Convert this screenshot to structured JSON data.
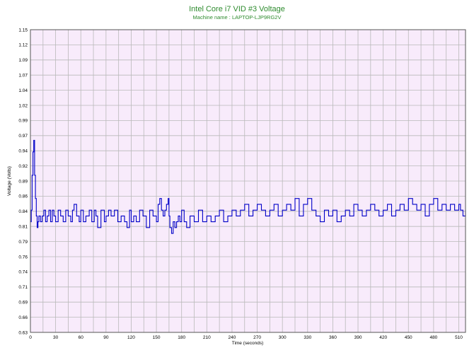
{
  "chart_data": {
    "type": "line",
    "title": "Intel Core i7 VID #3 Voltage",
    "subtitle": "Machine name : LAPTOP-LJP9RG2V",
    "xlabel": "Time (seconds)",
    "ylabel": "Voltage (Volts)",
    "xlim": [
      0,
      518
    ],
    "ylim": [
      0.63,
      1.15
    ],
    "x_ticks": [
      "0",
      "30",
      "60",
      "90",
      "120",
      "150",
      "180",
      "210",
      "240",
      "270",
      "300",
      "330",
      "360",
      "390",
      "420",
      "450",
      "480",
      "510"
    ],
    "y_ticks": [
      "1.15",
      "1.12",
      "1.09",
      "1.07",
      "1.04",
      "1.02",
      "0.99",
      "0.97",
      "0.94",
      "0.92",
      "0.89",
      "0.86",
      "0.84",
      "0.81",
      "0.79",
      "0.76",
      "0.74",
      "0.71",
      "0.69",
      "0.66",
      "0.63"
    ],
    "grid": true,
    "colors": {
      "plot_background": "#f8ebfb",
      "grid": "#b9b9b9",
      "line": "#0000c8",
      "title": "#2e8b2e"
    },
    "series": [
      {
        "x": [
          0,
          1,
          2,
          3,
          4,
          5,
          6,
          7,
          8,
          9,
          10,
          12,
          14,
          16,
          18,
          20,
          22,
          24,
          26,
          28,
          30,
          33,
          36,
          39,
          42,
          45,
          48,
          50,
          52,
          55,
          58,
          60,
          63,
          66,
          70,
          73,
          76,
          78,
          80,
          84,
          88,
          90,
          93,
          96,
          100,
          104,
          108,
          112,
          115,
          118,
          120,
          123,
          126,
          130,
          134,
          138,
          142,
          146,
          150,
          152,
          154,
          156,
          158,
          160,
          162,
          164,
          165,
          166,
          168,
          170,
          172,
          174,
          176,
          178,
          180,
          183,
          186,
          190,
          195,
          200,
          205,
          210,
          215,
          220,
          225,
          230,
          235,
          240,
          245,
          250,
          255,
          260,
          265,
          270,
          275,
          280,
          285,
          290,
          295,
          300,
          305,
          310,
          315,
          320,
          325,
          330,
          335,
          340,
          345,
          350,
          355,
          360,
          365,
          370,
          375,
          380,
          385,
          390,
          395,
          400,
          405,
          410,
          415,
          420,
          425,
          430,
          435,
          440,
          445,
          450,
          455,
          460,
          465,
          470,
          475,
          480,
          485,
          490,
          495,
          500,
          505,
          510,
          512,
          515,
          518
        ],
        "y": [
          0.82,
          0.84,
          0.9,
          0.94,
          0.96,
          0.9,
          0.86,
          0.83,
          0.81,
          0.82,
          0.83,
          0.82,
          0.83,
          0.84,
          0.82,
          0.83,
          0.84,
          0.82,
          0.84,
          0.83,
          0.82,
          0.84,
          0.83,
          0.82,
          0.84,
          0.83,
          0.82,
          0.84,
          0.85,
          0.83,
          0.82,
          0.84,
          0.82,
          0.83,
          0.84,
          0.82,
          0.84,
          0.83,
          0.81,
          0.84,
          0.82,
          0.83,
          0.84,
          0.83,
          0.84,
          0.82,
          0.83,
          0.82,
          0.81,
          0.84,
          0.82,
          0.83,
          0.82,
          0.84,
          0.83,
          0.81,
          0.84,
          0.83,
          0.82,
          0.85,
          0.86,
          0.84,
          0.83,
          0.84,
          0.85,
          0.86,
          0.83,
          0.81,
          0.8,
          0.82,
          0.81,
          0.82,
          0.83,
          0.82,
          0.84,
          0.82,
          0.81,
          0.83,
          0.82,
          0.84,
          0.82,
          0.83,
          0.82,
          0.83,
          0.84,
          0.82,
          0.83,
          0.84,
          0.83,
          0.84,
          0.85,
          0.83,
          0.84,
          0.85,
          0.84,
          0.83,
          0.84,
          0.85,
          0.83,
          0.84,
          0.85,
          0.84,
          0.86,
          0.83,
          0.85,
          0.86,
          0.84,
          0.83,
          0.82,
          0.84,
          0.83,
          0.84,
          0.82,
          0.83,
          0.84,
          0.83,
          0.85,
          0.84,
          0.83,
          0.84,
          0.85,
          0.84,
          0.83,
          0.84,
          0.85,
          0.83,
          0.84,
          0.85,
          0.84,
          0.86,
          0.85,
          0.84,
          0.85,
          0.83,
          0.85,
          0.86,
          0.84,
          0.85,
          0.84,
          0.85,
          0.84,
          0.85,
          0.84,
          0.83,
          0.84
        ]
      }
    ]
  }
}
